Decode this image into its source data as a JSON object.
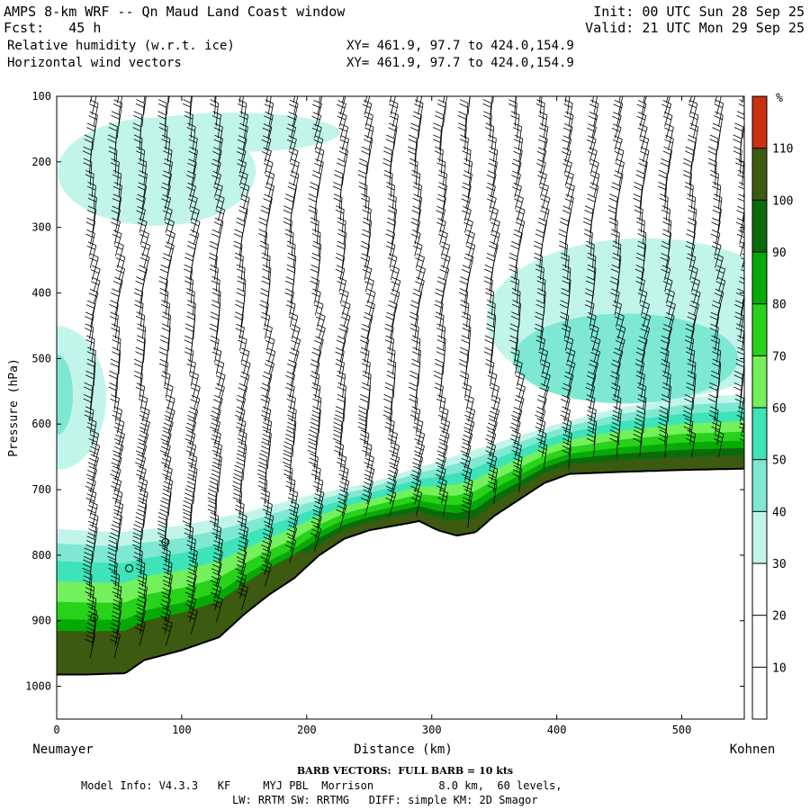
{
  "header": {
    "title": "AMPS 8-km WRF -- Qn Maud Land Coast window",
    "fcst": "Fcst:   45 h",
    "field1": "Relative humidity (w.r.t. ice)",
    "field2": "Horizontal wind vectors",
    "xy1": "XY= 461.9, 97.7 to 424.0,154.9",
    "xy2": "XY= 461.9, 97.7 to 424.0,154.9",
    "init": "Init: 00 UTC Sun 28 Sep 25",
    "valid": "Valid: 21 UTC Mon 29 Sep 25"
  },
  "footer": {
    "barb": "BARB VECTORS:  FULL BARB = 10 kts",
    "model1": "Model Info: V4.3.3   KF     MYJ PBL  Morrison          8.0 km,  60 levels,",
    "model2": "LW: RRTM SW: RRTMG   DIFF: simple KM: 2D Smagor"
  },
  "colors": {
    "rh_30_40": "#c2f5ea",
    "rh_40_50": "#7fe8d2",
    "rh_50_60": "#3ee3b8",
    "rh_60_70": "#74f05c",
    "rh_70_80": "#28d21a",
    "rh_80_90": "#07a907",
    "rh_90_100": "#0a6b0a",
    "rh_100_110": "#3c5a10",
    "rh_110_120": "#c83010",
    "terrain_line": "#000000"
  },
  "chart_data": {
    "type": "heatmap",
    "title": "Relative humidity (w.r.t. ice) and horizontal wind vectors, cross-section",
    "xlabel": "Distance (km)",
    "ylabel": "Pressure (hPa)",
    "x_start_label": "Neumayer",
    "x_end_label": "Kohnen",
    "xlim": [
      0,
      550
    ],
    "ylim": [
      1050,
      100
    ],
    "xticks": [
      0,
      100,
      200,
      300,
      400,
      500
    ],
    "yticks": [
      100,
      200,
      300,
      400,
      500,
      600,
      700,
      800,
      900,
      1000
    ],
    "colorbar": {
      "unit": "%",
      "ticks": [
        10,
        20,
        30,
        40,
        50,
        60,
        70,
        80,
        90,
        100,
        110
      ],
      "levels": [
        {
          "from": 0,
          "to": 30,
          "color": "#ffffff"
        },
        {
          "from": 30,
          "to": 40,
          "color": "#c2f5ea"
        },
        {
          "from": 40,
          "to": 50,
          "color": "#7fe8d2"
        },
        {
          "from": 50,
          "to": 60,
          "color": "#3ee3b8"
        },
        {
          "from": 60,
          "to": 70,
          "color": "#74f05c"
        },
        {
          "from": 70,
          "to": 80,
          "color": "#28d21a"
        },
        {
          "from": 80,
          "to": 90,
          "color": "#07a907"
        },
        {
          "from": 90,
          "to": 100,
          "color": "#0a6b0a"
        },
        {
          "from": 100,
          "to": 110,
          "color": "#3c5a10"
        },
        {
          "from": 110,
          "to": 120,
          "color": "#c83010"
        }
      ]
    },
    "terrain_surface": {
      "x_km": [
        0,
        25,
        55,
        70,
        100,
        130,
        150,
        170,
        190,
        210,
        230,
        250,
        270,
        290,
        305,
        320,
        335,
        350,
        370,
        390,
        410,
        450,
        500,
        550
      ],
      "p_hpa": [
        982,
        982,
        980,
        960,
        945,
        925,
        890,
        860,
        835,
        800,
        775,
        762,
        755,
        748,
        762,
        770,
        765,
        740,
        715,
        690,
        676,
        673,
        670,
        668
      ]
    },
    "moist_layer_top": {
      "x_km": [
        0,
        50,
        100,
        150,
        200,
        250,
        300,
        350,
        400,
        450,
        500,
        550
      ],
      "p_hpa": [
        760,
        765,
        755,
        735,
        710,
        690,
        660,
        630,
        600,
        575,
        560,
        555
      ]
    },
    "calm_markers": [
      {
        "x_km": 30,
        "p_hpa": 895
      },
      {
        "x_km": 58,
        "p_hpa": 820
      },
      {
        "x_km": 87,
        "p_hpa": 780
      }
    ],
    "barb_columns_km": [
      28,
      48,
      68,
      88,
      108,
      128,
      148,
      168,
      188,
      208,
      228,
      248,
      268,
      288,
      308,
      328,
      348,
      368,
      388,
      408,
      428,
      448,
      468,
      488,
      508,
      528,
      548
    ]
  }
}
